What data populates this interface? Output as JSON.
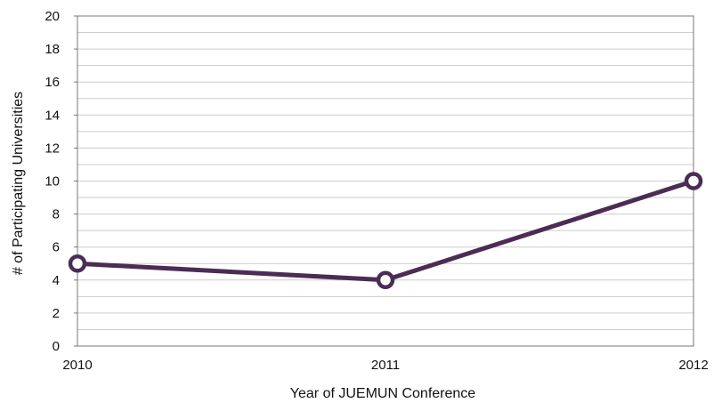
{
  "chart_data": {
    "type": "line",
    "title": "",
    "xlabel": "Year of JUEMUN Conference",
    "ylabel": "# of Participating Universities",
    "categories": [
      "2010",
      "2011",
      "2012"
    ],
    "series": [
      {
        "values": [
          5,
          4,
          10
        ]
      }
    ],
    "ylim": [
      0,
      20
    ],
    "y_ticks": [
      0,
      2,
      4,
      6,
      8,
      10,
      12,
      14,
      16,
      18,
      20
    ],
    "y_minor_step": 1,
    "grid": true,
    "legend": "none",
    "marker": "hollow-circle"
  },
  "colors": {
    "line": "#4a2c55",
    "marker_fill": "#ffffff",
    "grid": "#cccccc",
    "axis": "#777777"
  }
}
